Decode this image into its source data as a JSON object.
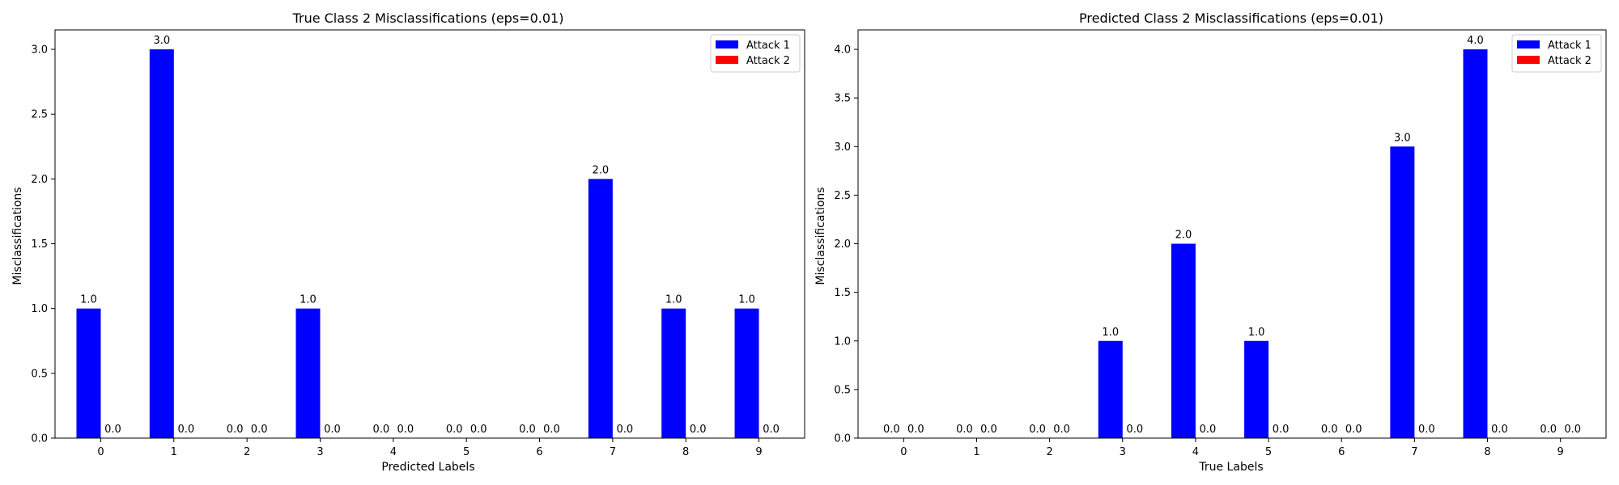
{
  "colors": {
    "attack1": "#0000ff",
    "attack2": "#ff0000"
  },
  "chart_data": [
    {
      "type": "bar",
      "title": "True Class 2 Misclassifications (eps=0.01)",
      "xlabel": "Predicted Labels",
      "ylabel": "Misclassifications",
      "categories": [
        "0",
        "1",
        "2",
        "3",
        "4",
        "5",
        "6",
        "7",
        "8",
        "9"
      ],
      "series": [
        {
          "name": "Attack 1",
          "values": [
            1,
            3,
            0,
            1,
            0,
            0,
            0,
            2,
            1,
            1
          ]
        },
        {
          "name": "Attack 2",
          "values": [
            0,
            0,
            0,
            0,
            0,
            0,
            0,
            0,
            0,
            0
          ]
        }
      ],
      "ylim": [
        0,
        3.15
      ],
      "yticks": [
        "0.0",
        "0.5",
        "1.0",
        "1.5",
        "2.0",
        "2.5",
        "3.0"
      ],
      "grid": false,
      "legend": "top-right"
    },
    {
      "type": "bar",
      "title": "Predicted Class 2 Misclassifications (eps=0.01)",
      "xlabel": "True Labels",
      "ylabel": "Misclassifications",
      "categories": [
        "0",
        "1",
        "2",
        "3",
        "4",
        "5",
        "6",
        "7",
        "8",
        "9"
      ],
      "series": [
        {
          "name": "Attack 1",
          "values": [
            0,
            0,
            0,
            1,
            2,
            1,
            0,
            3,
            4,
            0
          ]
        },
        {
          "name": "Attack 2",
          "values": [
            0,
            0,
            0,
            0,
            0,
            0,
            0,
            0,
            0,
            0
          ]
        }
      ],
      "ylim": [
        0,
        4.2
      ],
      "yticks": [
        "0.0",
        "0.5",
        "1.0",
        "1.5",
        "2.0",
        "2.5",
        "3.0",
        "3.5",
        "4.0"
      ],
      "grid": false,
      "legend": "top-right"
    }
  ]
}
